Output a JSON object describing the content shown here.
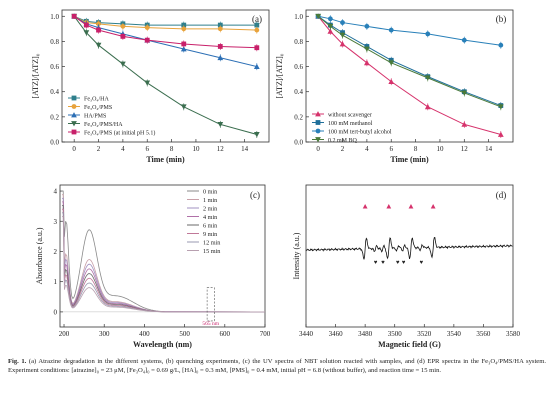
{
  "chart_data": [
    {
      "type": "line",
      "panel": "(a)",
      "xlabel": "Time (min)",
      "ylabel": "[ATZ]/[ATZ]₀",
      "xlim": [
        -1,
        16
      ],
      "ylim": [
        0,
        1.05
      ],
      "xticks": [
        0,
        2,
        4,
        6,
        8,
        10,
        12,
        14
      ],
      "yticks": [
        0.0,
        0.2,
        0.4,
        0.6,
        0.8,
        1.0
      ],
      "legend_position": "lower-left",
      "x": [
        0,
        1,
        2,
        4,
        6,
        9,
        12,
        15
      ],
      "series": [
        {
          "name": "Fe₃O₄/HA",
          "color": "#2f7f8c",
          "marker": "square",
          "values": [
            1.0,
            0.96,
            0.95,
            0.94,
            0.93,
            0.93,
            0.93,
            0.93
          ]
        },
        {
          "name": "Fe₃O₄/PMS",
          "color": "#e8a33c",
          "marker": "circle",
          "values": [
            1.0,
            0.95,
            0.94,
            0.92,
            0.91,
            0.9,
            0.9,
            0.89
          ]
        },
        {
          "name": "HA/PMS",
          "color": "#2c6fb5",
          "marker": "triangle",
          "values": [
            1.0,
            0.94,
            0.91,
            0.86,
            0.81,
            0.74,
            0.67,
            0.6
          ]
        },
        {
          "name": "Fe₃O₄/PMS/HA",
          "color": "#3b6e4f",
          "marker": "triangle-down",
          "values": [
            1.0,
            0.87,
            0.77,
            0.62,
            0.47,
            0.28,
            0.14,
            0.06
          ]
        },
        {
          "name": "Fe₃O₄/PMS (at initial pH 5.1)",
          "color": "#c8206a",
          "marker": "square",
          "values": [
            1.0,
            0.93,
            0.89,
            0.84,
            0.81,
            0.78,
            0.76,
            0.75
          ]
        }
      ]
    },
    {
      "type": "line",
      "panel": "(b)",
      "xlabel": "Time (min)",
      "ylabel": "[ATZ]/[ATZ]₀",
      "xlim": [
        -1,
        16
      ],
      "ylim": [
        0,
        1.05
      ],
      "xticks": [
        0,
        2,
        4,
        6,
        8,
        10,
        12,
        14
      ],
      "yticks": [
        0.0,
        0.2,
        0.4,
        0.6,
        0.8,
        1.0
      ],
      "legend_position": "lower-left",
      "x": [
        0,
        1,
        2,
        4,
        6,
        9,
        12,
        15
      ],
      "series": [
        {
          "name": "without scavenger",
          "color": "#d6336c",
          "marker": "triangle",
          "values": [
            1.0,
            0.88,
            0.78,
            0.63,
            0.48,
            0.28,
            0.14,
            0.06
          ]
        },
        {
          "name": "100 mM methanol",
          "color": "#1f6f9a",
          "marker": "square",
          "values": [
            1.0,
            0.93,
            0.87,
            0.76,
            0.65,
            0.52,
            0.4,
            0.29
          ]
        },
        {
          "name": "100 mM  tert-butyl alcohol",
          "color": "#2980b9",
          "marker": "circle",
          "values": [
            1.0,
            0.98,
            0.95,
            0.92,
            0.89,
            0.86,
            0.81,
            0.77
          ]
        },
        {
          "name": "0.2 mM BQ",
          "color": "#4a7a3a",
          "marker": "triangle-down",
          "values": [
            1.0,
            0.92,
            0.85,
            0.74,
            0.63,
            0.51,
            0.39,
            0.28
          ]
        }
      ]
    },
    {
      "type": "line",
      "panel": "(c)",
      "xlabel": "Wavelength (nm)",
      "ylabel": "Absorbance (a.u.)",
      "xlim": [
        190,
        700
      ],
      "ylim": [
        -0.5,
        4.2
      ],
      "xticks": [
        200,
        300,
        400,
        500,
        600,
        700
      ],
      "yticks": [
        0,
        1,
        2,
        3,
        4
      ],
      "legend_position": "right",
      "annotation": "565 nm",
      "series": [
        {
          "name": "0 min",
          "color": "#8a8a8a"
        },
        {
          "name": "1 min",
          "color": "#c8a0a8"
        },
        {
          "name": "2 min",
          "color": "#a090c0"
        },
        {
          "name": "4 min",
          "color": "#b070a8"
        },
        {
          "name": "6 min",
          "color": "#6a6a6a"
        },
        {
          "name": "9 min",
          "color": "#c07898"
        },
        {
          "name": "12 min",
          "color": "#9a9ab0"
        },
        {
          "name": "15 min",
          "color": "#b8a0b0"
        }
      ]
    },
    {
      "type": "line",
      "panel": "(d)",
      "xlabel": "Magnetic field (G)",
      "ylabel": "Intensity (a.u.)",
      "xlim": [
        3440,
        3580
      ],
      "xticks": [
        3440,
        3460,
        3480,
        3500,
        3520,
        3540,
        3560,
        3580
      ],
      "peak_markers_triangle": [
        3480,
        3496,
        3511,
        3526
      ],
      "peak_markers_heart": [
        3487,
        3492,
        3502,
        3506,
        3518
      ]
    }
  ],
  "caption": {
    "label": "Fig. 1.",
    "text": "(a) Atrazine degradation in the different systems, (b) quenching experiments, (c) the UV spectra of NBT solution reacted with samples, and (d) EPR spectra in the Fe₃O₄/PMS/HA system. Experiment conditions: [atrazine]₀ = 23 μM, [Fe₃O₄]₀ = 0.69 g/L, [HA]₀ = 0.3 mM, [PMS]₀ = 0.4 mM, initial pH = 6.8 (without buffer), and reaction time = 15 min."
  }
}
